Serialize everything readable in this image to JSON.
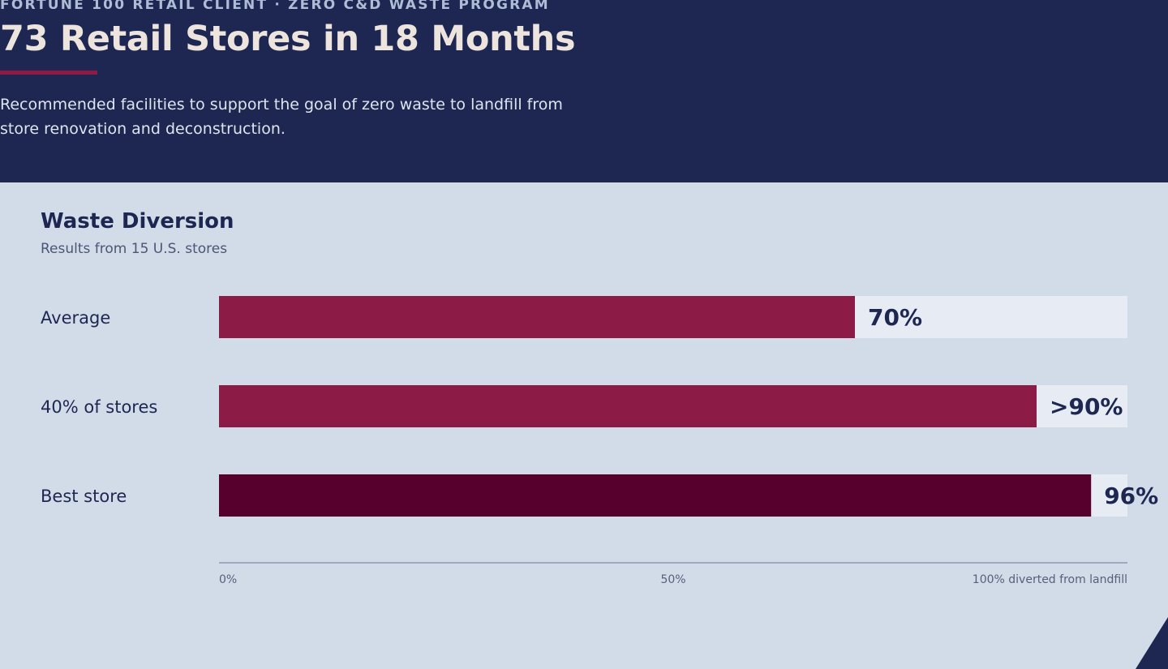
{
  "header": {
    "eyebrow": "FORTUNE 100 RETAIL CLIENT · ZERO C&D WASTE PROGRAM",
    "title": "73 Retail Stores in 18 Months",
    "description": "Recommended facilities to support the goal of zero waste to landfill from store renovation and deconstruction."
  },
  "panel": {
    "title": "Waste Diversion",
    "subtitle": "Results from 15 U.S. stores"
  },
  "colors": {
    "navy": "#1d2752",
    "crimson": "#8c1c46",
    "maroon": "#58002d",
    "track": "#e7ecf4",
    "panel_bg": "#d2dce8"
  },
  "chart_data": {
    "type": "bar",
    "orientation": "horizontal",
    "categories": [
      "Average",
      "40% of stores",
      "Best store"
    ],
    "values": [
      70,
      90,
      96
    ],
    "value_labels": [
      "70%",
      ">90%",
      "96%"
    ],
    "bar_colors": [
      "#8c1c46",
      "#8c1c46",
      "#58002d"
    ],
    "xlim": [
      0,
      100
    ],
    "x_ticks": [
      {
        "value": 0,
        "label": "0%"
      },
      {
        "value": 50,
        "label": "50%"
      },
      {
        "value": 100,
        "label": "100% diverted from landfill"
      }
    ],
    "grid": false,
    "legend": "none"
  }
}
